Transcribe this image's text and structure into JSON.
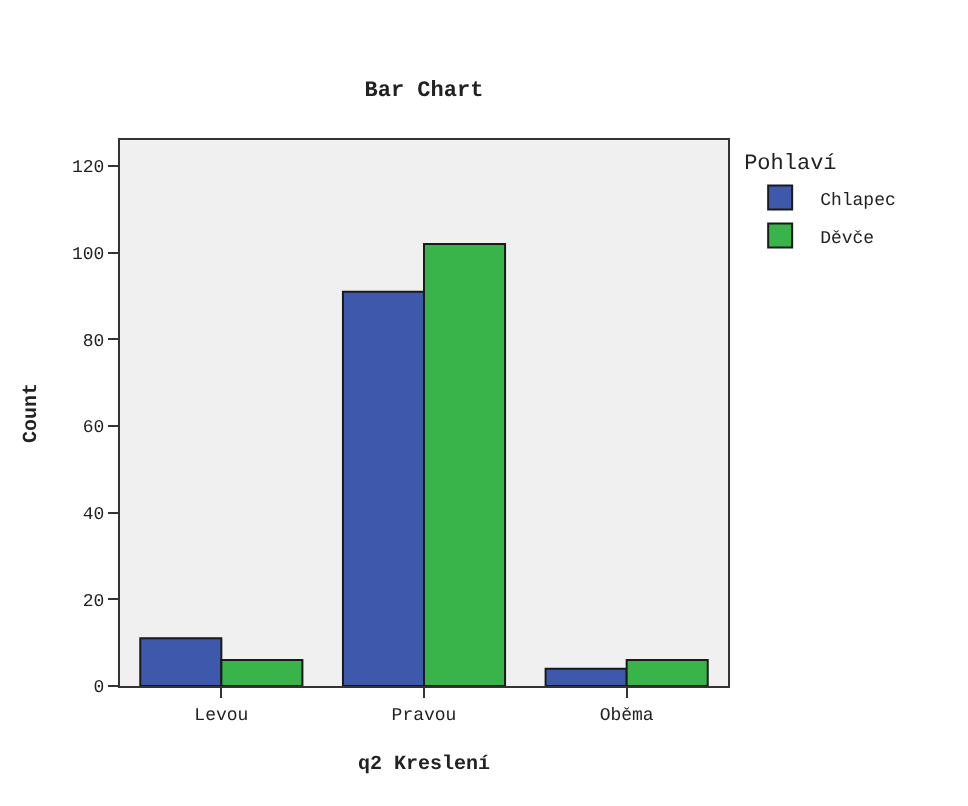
{
  "chart_data": {
    "type": "bar",
    "title": "Bar Chart",
    "xlabel": "q2 Kreslení",
    "ylabel": "Count",
    "legend_title": "Pohlaví",
    "categories": [
      "Levou",
      "Pravou",
      "Oběma"
    ],
    "series": [
      {
        "name": "Chlapec",
        "color": "#3e58ac",
        "values": [
          11,
          91,
          4
        ]
      },
      {
        "name": "Děvče",
        "color": "#38b44a",
        "values": [
          6,
          102,
          6
        ]
      }
    ],
    "ylim": [
      0,
      126
    ],
    "yticks": [
      0,
      20,
      40,
      60,
      80,
      100,
      120
    ],
    "grid": false,
    "legend": "top right"
  }
}
